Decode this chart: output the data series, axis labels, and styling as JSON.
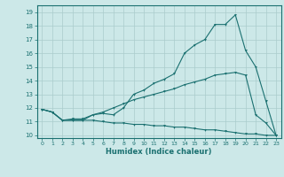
{
  "xlabel": "Humidex (Indice chaleur)",
  "background_color": "#cce8e8",
  "grid_color": "#aacccc",
  "line_color": "#1a7070",
  "xlim": [
    -0.5,
    23.5
  ],
  "ylim": [
    9.8,
    19.5
  ],
  "xticks": [
    0,
    1,
    2,
    3,
    4,
    5,
    6,
    7,
    8,
    9,
    10,
    11,
    12,
    13,
    14,
    15,
    16,
    17,
    18,
    19,
    20,
    21,
    22,
    23
  ],
  "yticks": [
    10,
    11,
    12,
    13,
    14,
    15,
    16,
    17,
    18,
    19
  ],
  "line1_x": [
    0,
    1,
    2,
    3,
    4,
    5,
    6,
    7,
    8,
    9,
    10,
    11,
    12,
    13,
    14,
    15,
    16,
    17,
    18,
    19,
    20,
    21,
    22,
    23
  ],
  "line1_y": [
    11.9,
    11.7,
    11.1,
    11.1,
    11.1,
    11.5,
    11.6,
    11.5,
    12.0,
    13.0,
    13.3,
    13.8,
    14.1,
    14.5,
    16.0,
    16.6,
    17.0,
    18.1,
    18.1,
    18.8,
    16.2,
    15.0,
    12.5,
    10.0
  ],
  "line2_x": [
    0,
    1,
    2,
    3,
    4,
    5,
    6,
    7,
    8,
    9,
    10,
    11,
    12,
    13,
    14,
    15,
    16,
    17,
    18,
    19,
    20,
    21,
    22,
    23
  ],
  "line2_y": [
    11.9,
    11.7,
    11.1,
    11.2,
    11.2,
    11.5,
    11.7,
    12.0,
    12.3,
    12.6,
    12.8,
    13.0,
    13.2,
    13.4,
    13.7,
    13.9,
    14.1,
    14.4,
    14.5,
    14.6,
    14.4,
    11.5,
    10.9,
    10.0
  ],
  "line3_x": [
    0,
    1,
    2,
    3,
    4,
    5,
    6,
    7,
    8,
    9,
    10,
    11,
    12,
    13,
    14,
    15,
    16,
    17,
    18,
    19,
    20,
    21,
    22,
    23
  ],
  "line3_y": [
    11.9,
    11.7,
    11.1,
    11.1,
    11.1,
    11.1,
    11.0,
    10.9,
    10.9,
    10.8,
    10.8,
    10.7,
    10.7,
    10.6,
    10.6,
    10.5,
    10.4,
    10.4,
    10.3,
    10.2,
    10.1,
    10.1,
    10.0,
    10.0
  ]
}
